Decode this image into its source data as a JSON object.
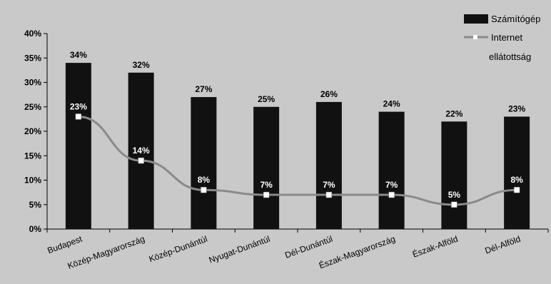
{
  "chart_data": {
    "type": "bar",
    "categories": [
      "Budapest",
      "Közép-Magyarország",
      "Közép-Dunántúl",
      "Nyugat-Dunántúl",
      "Dél-Dunántúl",
      "Észak-Magyarország",
      "Észak-Alföld",
      "Dél-Alföld"
    ],
    "series": [
      {
        "name": "Számítógép",
        "type": "bar",
        "values": [
          34,
          32,
          27,
          25,
          26,
          24,
          22,
          23
        ],
        "labels": [
          "34%",
          "32%",
          "27%",
          "25%",
          "26%",
          "24%",
          "22%",
          "23%"
        ],
        "color": "#111111"
      },
      {
        "name": "Internet",
        "type": "line",
        "values": [
          23,
          14,
          8,
          7,
          7,
          7,
          5,
          8
        ],
        "labels": [
          "23%",
          "14%",
          "8%",
          "7%",
          "7%",
          "7%",
          "5%",
          "8%"
        ],
        "color": "#8a8a8a"
      }
    ],
    "y_ticks": [
      "0%",
      "5%",
      "10%",
      "15%",
      "20%",
      "25%",
      "30%",
      "35%",
      "40%"
    ],
    "ylim": [
      0,
      40
    ],
    "legend_note": "ellátottság",
    "legend_position": "top-right",
    "grid": false,
    "colors": {
      "background": "#c9c9c9",
      "bar": "#111111",
      "line": "#8a8a8a",
      "marker": "#ffffff"
    }
  }
}
